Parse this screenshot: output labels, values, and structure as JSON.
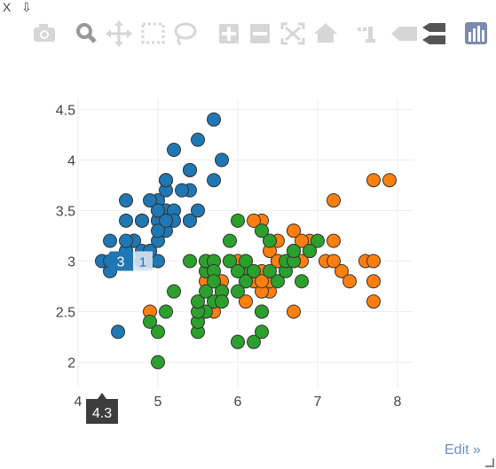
{
  "window": {
    "close_label": "X",
    "download_glyph": "⇩",
    "edit_label": "Edit »"
  },
  "modebar": {
    "icons": [
      "camera-icon",
      "zoom-icon",
      "pan-icon",
      "box-select-icon",
      "lasso-select-icon",
      "zoom-in-icon",
      "zoom-out-icon",
      "autoscale-icon",
      "reset-axes-icon",
      "spike-lines-icon",
      "hover-closest-icon",
      "hover-compare-icon",
      "plotly-logo-icon"
    ]
  },
  "colors": {
    "series1": "#1f77b4",
    "series2": "#ff7f0e",
    "series3": "#2ca02c",
    "tooltip_bg": "#3d3d3d",
    "modebar_icon": "#d6d6d6",
    "grid": "#eeeeee"
  },
  "chart_data": {
    "type": "scatter",
    "title": "",
    "xlabel": "",
    "ylabel": "",
    "xlim": [
      4,
      8.2
    ],
    "ylim": [
      1.75,
      4.6
    ],
    "x_ticks": [
      "4",
      "5",
      "6",
      "7",
      "8"
    ],
    "y_ticks": [
      "2",
      "2.5",
      "3",
      "3.5",
      "4",
      "4.5"
    ],
    "grid": true,
    "legend": "none",
    "hover": {
      "x_label": "4.3",
      "y_label": "3",
      "y_label_count": "1"
    },
    "series": [
      {
        "color": "#1f77b4",
        "x": [
          5.1,
          4.9,
          4.7,
          4.6,
          5.0,
          5.4,
          4.6,
          5.0,
          4.4,
          4.9,
          5.4,
          4.8,
          4.8,
          4.3,
          5.8,
          5.7,
          5.4,
          5.1,
          5.7,
          5.1,
          5.4,
          5.1,
          4.6,
          5.1,
          4.8,
          5.0,
          5.0,
          5.2,
          5.2,
          4.7,
          4.8,
          5.4,
          5.2,
          5.5,
          4.9,
          5.0,
          5.5,
          4.9,
          4.4,
          5.1,
          5.0,
          4.5,
          4.4,
          5.0,
          5.1,
          4.8,
          5.1,
          4.6,
          5.3,
          5.0
        ],
        "y": [
          3.5,
          3.0,
          3.2,
          3.1,
          3.6,
          3.9,
          3.4,
          3.4,
          2.9,
          3.1,
          3.7,
          3.4,
          3.0,
          3.0,
          4.0,
          4.4,
          3.9,
          3.5,
          3.8,
          3.8,
          3.4,
          3.7,
          3.6,
          3.3,
          3.4,
          3.0,
          3.4,
          3.5,
          3.4,
          3.2,
          3.1,
          3.4,
          4.1,
          4.2,
          3.1,
          3.2,
          3.5,
          3.6,
          3.0,
          3.4,
          3.5,
          2.3,
          3.2,
          3.5,
          3.8,
          3.0,
          3.8,
          3.2,
          3.7,
          3.3
        ]
      },
      {
        "color": "#ff7f0e",
        "x": [
          6.3,
          5.8,
          7.1,
          6.3,
          6.5,
          7.6,
          4.9,
          7.3,
          6.7,
          7.2,
          6.5,
          6.4,
          6.8,
          5.7,
          5.8,
          6.4,
          6.5,
          7.7,
          7.7,
          6.0,
          6.9,
          5.6,
          7.7,
          6.3,
          6.7,
          7.2,
          6.2,
          6.1,
          6.4,
          7.2,
          7.4,
          7.9,
          6.4,
          6.3,
          6.1,
          7.7,
          6.3,
          6.4,
          6.0,
          6.9,
          6.7,
          6.9,
          5.8,
          6.8,
          6.7,
          6.7,
          6.3,
          6.5,
          6.2,
          5.9
        ],
        "y": [
          3.3,
          2.7,
          3.0,
          2.9,
          3.0,
          3.0,
          2.5,
          2.9,
          2.5,
          3.6,
          3.2,
          2.7,
          3.0,
          2.5,
          2.8,
          3.2,
          3.0,
          3.8,
          2.6,
          2.2,
          3.2,
          2.8,
          2.8,
          2.7,
          3.3,
          3.2,
          2.8,
          3.0,
          2.8,
          3.0,
          2.8,
          3.8,
          2.8,
          2.8,
          2.6,
          3.0,
          3.4,
          3.1,
          3.0,
          3.1,
          3.1,
          3.1,
          2.7,
          3.2,
          3.3,
          3.0,
          2.5,
          3.0,
          3.4,
          3.0
        ]
      },
      {
        "color": "#2ca02c",
        "x": [
          7.0,
          6.4,
          6.9,
          5.5,
          6.5,
          5.7,
          6.3,
          4.9,
          6.6,
          5.2,
          5.0,
          5.9,
          6.0,
          6.1,
          5.6,
          6.7,
          5.6,
          5.8,
          6.2,
          5.6,
          5.9,
          6.1,
          6.3,
          6.1,
          6.4,
          6.6,
          6.8,
          6.7,
          6.0,
          5.7,
          5.5,
          5.5,
          5.8,
          6.0,
          5.4,
          6.0,
          6.7,
          6.3,
          5.6,
          5.5,
          5.5,
          6.1,
          5.8,
          5.0,
          5.6,
          5.7,
          5.7,
          6.2,
          5.1,
          5.7
        ],
        "y": [
          3.2,
          3.2,
          3.1,
          2.3,
          2.8,
          2.8,
          3.3,
          2.4,
          2.9,
          2.7,
          2.0,
          3.0,
          2.2,
          2.9,
          2.9,
          3.1,
          3.0,
          2.7,
          2.2,
          2.5,
          3.2,
          2.8,
          2.5,
          2.8,
          2.9,
          3.0,
          2.8,
          3.0,
          2.9,
          2.6,
          2.4,
          2.4,
          2.7,
          2.7,
          3.0,
          3.4,
          3.1,
          2.3,
          3.0,
          2.5,
          2.6,
          3.0,
          2.6,
          2.3,
          2.7,
          3.0,
          2.9,
          2.9,
          2.5,
          2.8
        ]
      }
    ]
  }
}
